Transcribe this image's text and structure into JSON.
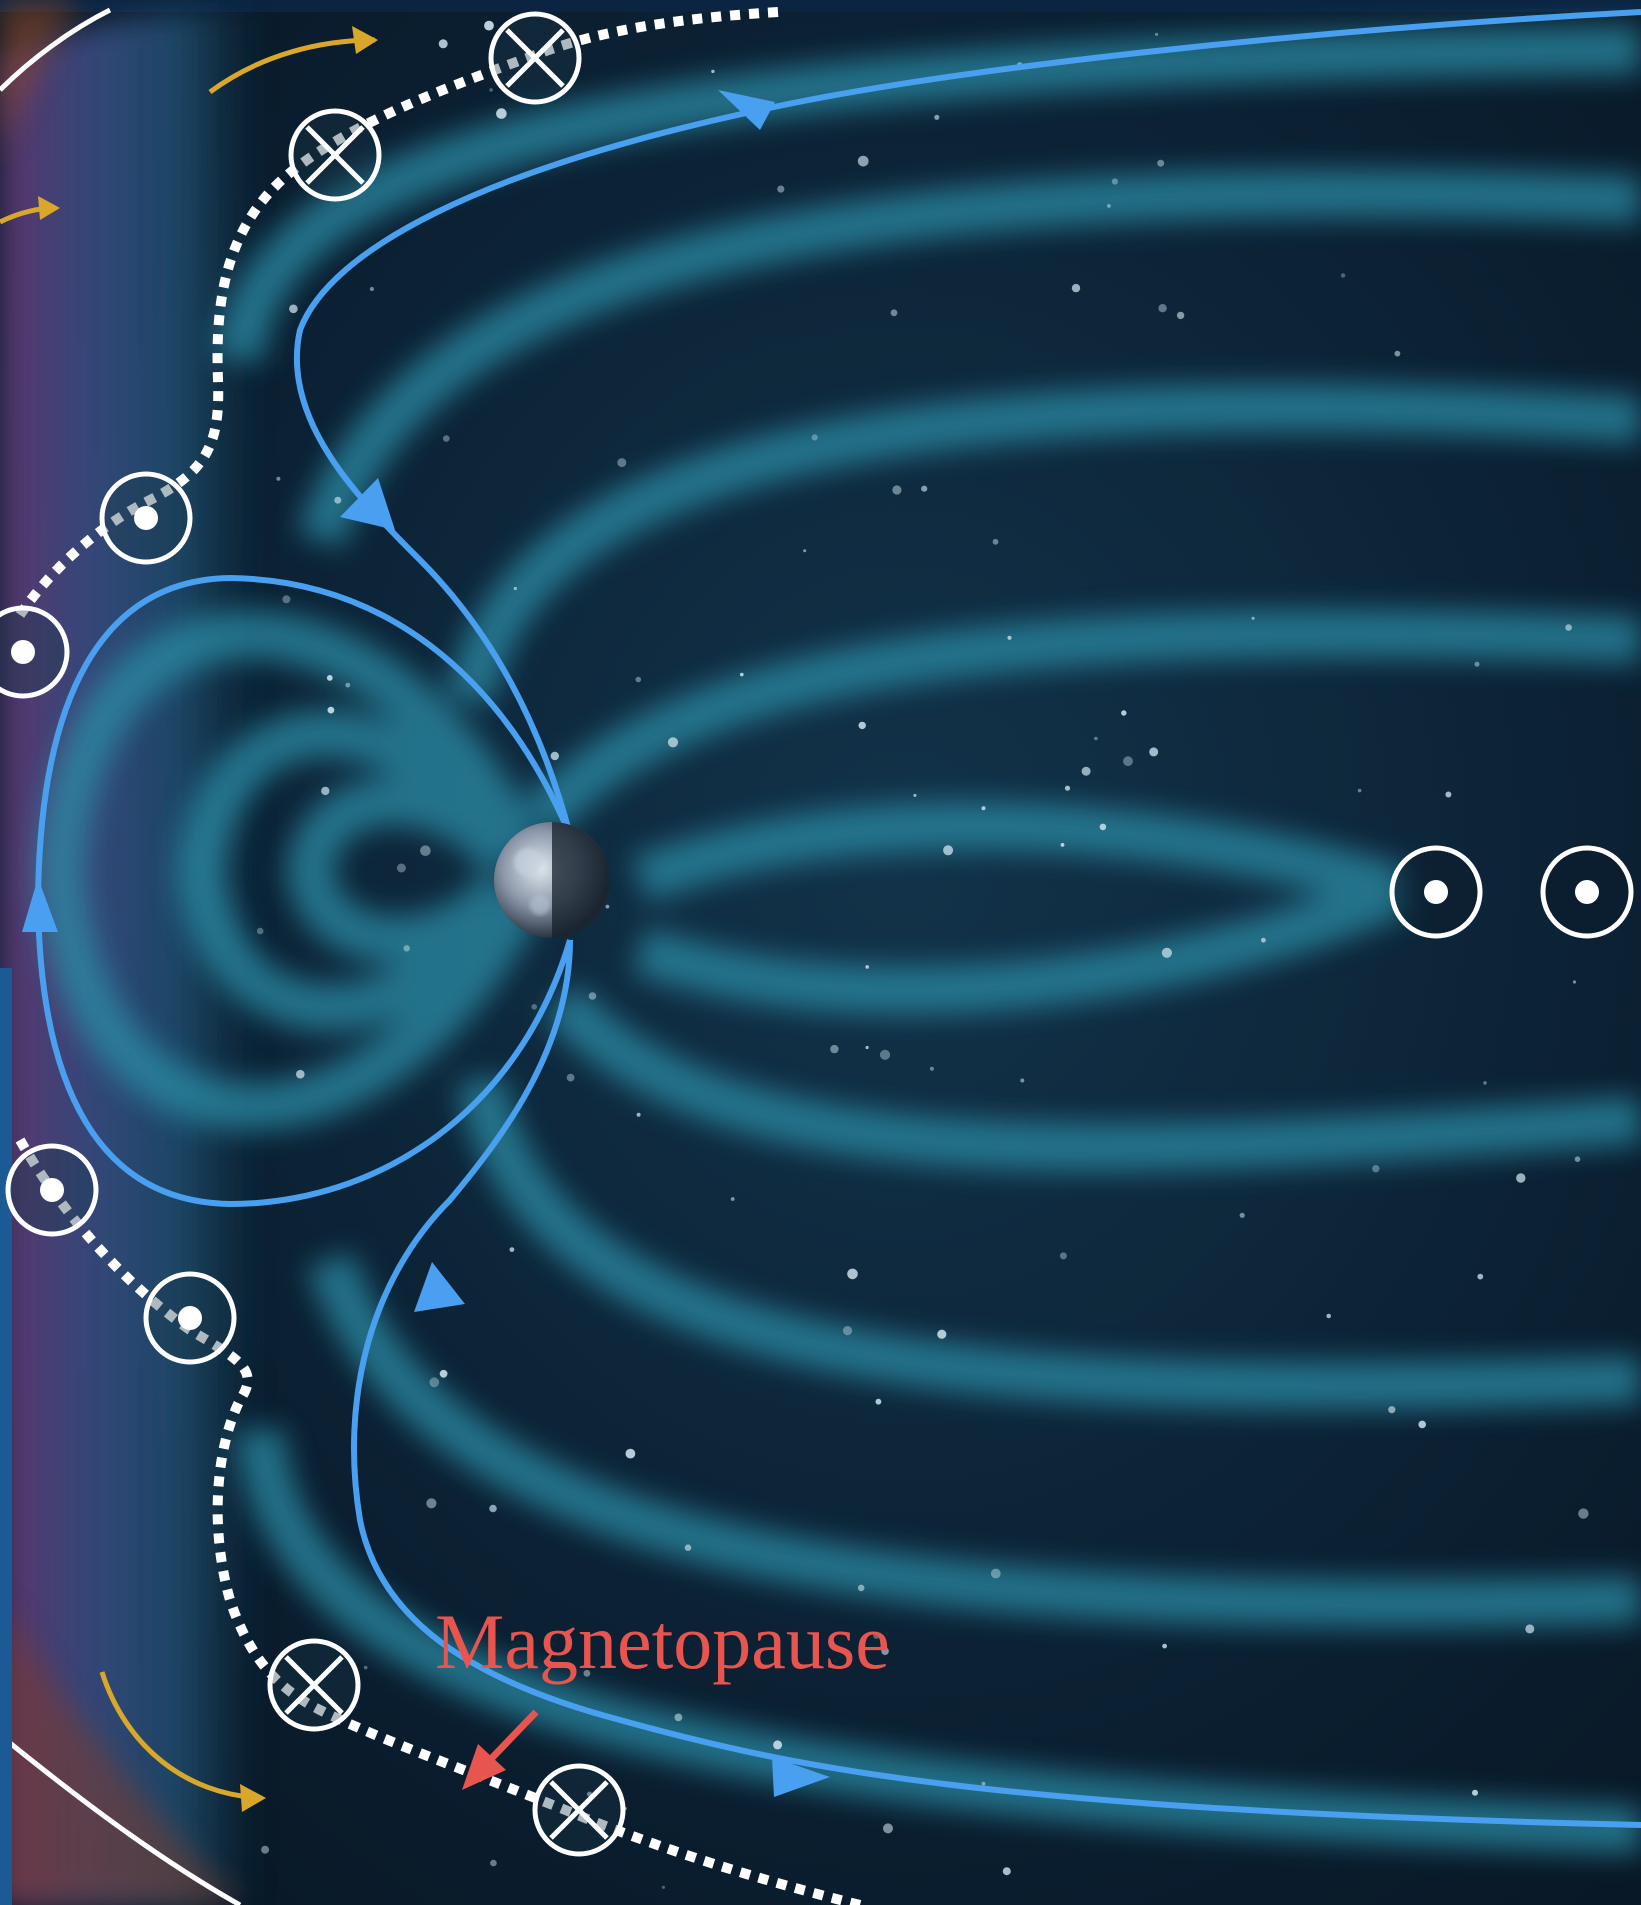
{
  "labels": {
    "magnetopause": "Magnetopause"
  },
  "symbols": {
    "into_page": "circle-x-icon",
    "out_of_page": "circle-dot-icon"
  },
  "colors": {
    "background": "#0a1622",
    "field_glow": "#2a8ca6",
    "field_line": "#4aa0f0",
    "magnetopause_dots": "#ffffff",
    "bow_shock": "#ffffff",
    "solar_wind_arrows": "#d9a82a",
    "label": "#e8554e",
    "earth": "#8a96a8"
  }
}
